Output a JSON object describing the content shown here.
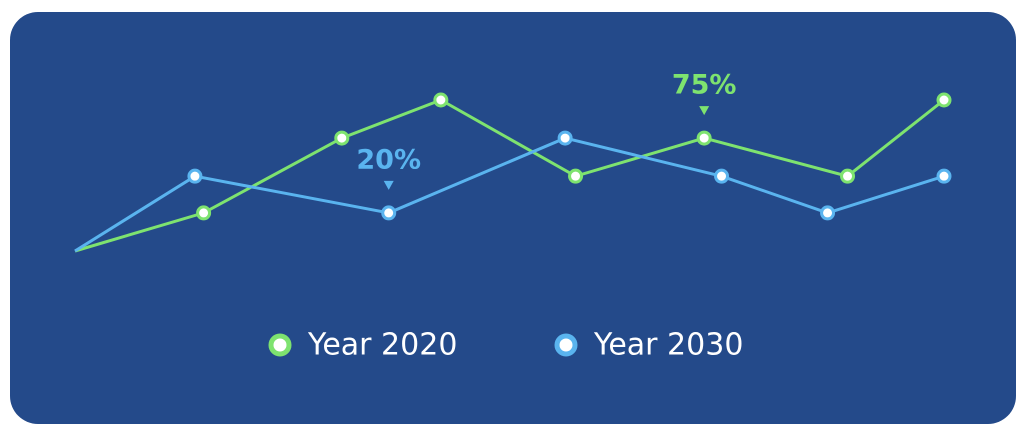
{
  "chart_data": {
    "type": "line",
    "series": [
      {
        "name": "Year 2020",
        "color": "#7ee36f",
        "x": [
          0,
          14.8,
          30.7,
          42.1,
          57.6,
          72.4,
          88.9,
          100
        ],
        "values": [
          -8,
          20,
          75,
          103,
          47,
          75,
          47,
          103
        ]
      },
      {
        "name": "Year 2030",
        "color": "#5ab4ef",
        "x": [
          0,
          13.8,
          36.1,
          56.4,
          74.4,
          86.6,
          100
        ],
        "values": [
          -8,
          47,
          20,
          75,
          47,
          20,
          47
        ]
      }
    ],
    "annotations": [
      {
        "text": "20%",
        "series": "Year 2030",
        "x": 36.1,
        "y": 20
      },
      {
        "text": "75%",
        "series": "Year 2020",
        "x": 72.4,
        "y": 75
      }
    ]
  }
}
